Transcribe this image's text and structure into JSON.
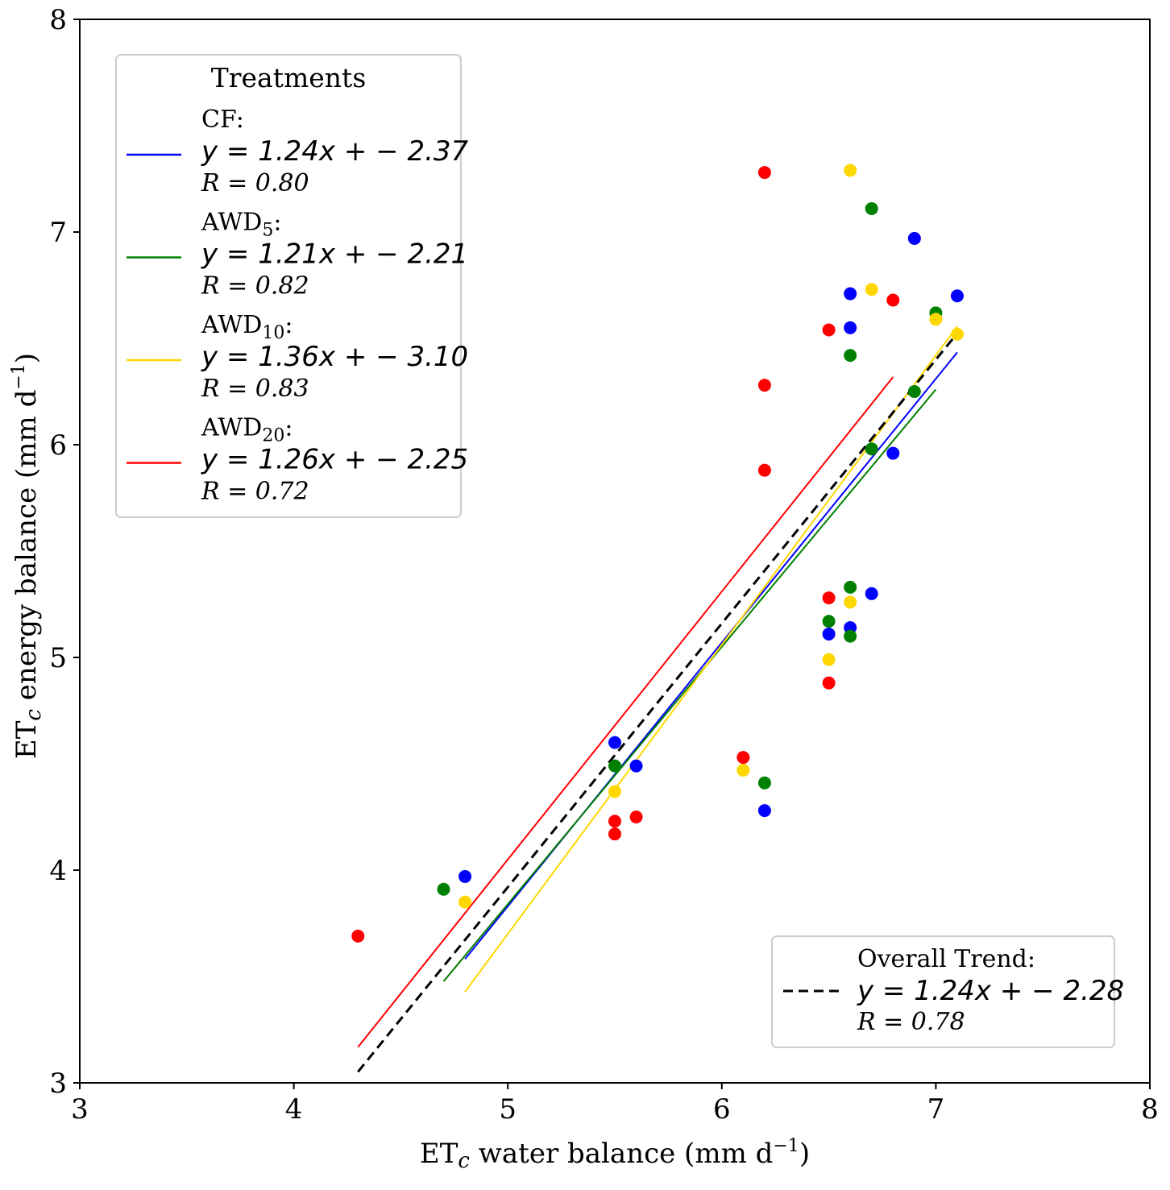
{
  "chart_data": {
    "type": "scatter",
    "xlabel": "ET",
    "xlabel_sub": "c",
    "xlabel_rest": " water balance (mm d",
    "xlabel_exp": "−1",
    "xlabel_close": ")",
    "ylabel": "ET",
    "ylabel_sub": "c",
    "ylabel_rest": " energy balance (mm d",
    "ylabel_exp": "−1",
    "ylabel_close": ")",
    "xlim": [
      3,
      8
    ],
    "ylim": [
      3,
      8
    ],
    "xticks": [
      "3",
      "4",
      "5",
      "6",
      "7",
      "8"
    ],
    "yticks": [
      "3",
      "4",
      "5",
      "6",
      "7",
      "8"
    ],
    "legend_title": "Treatments",
    "series": [
      {
        "name": "CF:",
        "name_base": "CF",
        "name_sub": "",
        "color": "#0000ff",
        "equation": "y = 1.24x + − 2.37",
        "r_label": "R = 0.80",
        "fit": {
          "x0": 4.8,
          "x1": 7.1,
          "slope": 1.24,
          "intercept": -2.37
        },
        "points": [
          [
            4.8,
            3.97
          ],
          [
            5.5,
            4.6
          ],
          [
            5.6,
            4.49
          ],
          [
            6.2,
            4.28
          ],
          [
            6.5,
            5.11
          ],
          [
            6.6,
            5.14
          ],
          [
            6.7,
            5.3
          ],
          [
            6.6,
            6.55
          ],
          [
            6.6,
            6.71
          ],
          [
            6.8,
            5.96
          ],
          [
            6.9,
            6.97
          ],
          [
            7.1,
            6.7
          ]
        ]
      },
      {
        "name": "AWD5:",
        "name_base": "AWD",
        "name_sub": "5",
        "color": "#008000",
        "equation": "y = 1.21x + − 2.21",
        "r_label": "R = 0.82",
        "fit": {
          "x0": 4.7,
          "x1": 7.0,
          "slope": 1.21,
          "intercept": -2.21
        },
        "points": [
          [
            4.7,
            3.91
          ],
          [
            5.5,
            4.49
          ],
          [
            6.2,
            4.41
          ],
          [
            6.5,
            5.17
          ],
          [
            6.6,
            5.1
          ],
          [
            6.6,
            5.33
          ],
          [
            6.6,
            6.42
          ],
          [
            6.7,
            5.98
          ],
          [
            6.7,
            7.11
          ],
          [
            6.9,
            6.25
          ],
          [
            7.0,
            6.62
          ]
        ]
      },
      {
        "name": "AWD10:",
        "name_base": "AWD",
        "name_sub": "10",
        "color": "#ffd700",
        "equation": "y = 1.36x + − 3.10",
        "r_label": "R = 0.83",
        "fit": {
          "x0": 4.8,
          "x1": 7.1,
          "slope": 1.36,
          "intercept": -3.1
        },
        "points": [
          [
            4.8,
            3.85
          ],
          [
            5.5,
            4.37
          ],
          [
            6.1,
            4.47
          ],
          [
            6.5,
            4.99
          ],
          [
            6.6,
            5.26
          ],
          [
            6.6,
            7.29
          ],
          [
            6.7,
            6.73
          ],
          [
            7.0,
            6.59
          ],
          [
            7.1,
            6.52
          ]
        ]
      },
      {
        "name": "AWD20:",
        "name_base": "AWD",
        "name_sub": "20",
        "color": "#ff0000",
        "equation": "y = 1.26x + − 2.25",
        "r_label": "R = 0.72",
        "fit": {
          "x0": 4.3,
          "x1": 6.8,
          "slope": 1.26,
          "intercept": -2.25
        },
        "points": [
          [
            4.3,
            3.69
          ],
          [
            5.5,
            4.17
          ],
          [
            5.5,
            4.23
          ],
          [
            5.6,
            4.25
          ],
          [
            6.1,
            4.53
          ],
          [
            6.2,
            5.88
          ],
          [
            6.2,
            6.28
          ],
          [
            6.2,
            7.28
          ],
          [
            6.5,
            4.88
          ],
          [
            6.5,
            5.28
          ],
          [
            6.5,
            6.54
          ],
          [
            6.8,
            6.68
          ]
        ]
      }
    ],
    "overall": {
      "title": "Overall Trend:",
      "equation": "y = 1.24x + − 2.28",
      "r_label": "R = 0.78",
      "color": "#000000",
      "fit": {
        "x0": 4.3,
        "x1": 7.1,
        "slope": 1.24,
        "intercept": -2.28
      }
    }
  }
}
